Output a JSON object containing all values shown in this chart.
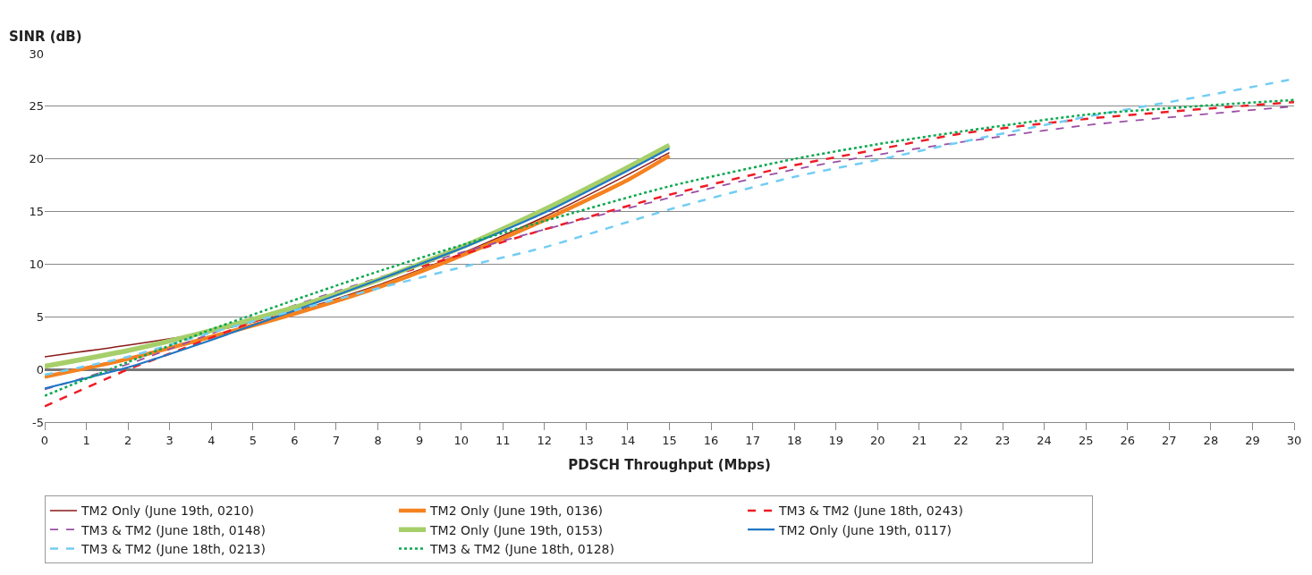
{
  "chart_data": {
    "type": "line",
    "xlabel": "PDSCH Throughput (Mbps)",
    "ylabel": "SINR (dB)",
    "xlim": [
      0,
      30
    ],
    "xticks": [
      0,
      1,
      2,
      3,
      4,
      5,
      6,
      7,
      8,
      9,
      10,
      11,
      12,
      13,
      14,
      15,
      16,
      17,
      18,
      19,
      20,
      21,
      22,
      23,
      24,
      25,
      26,
      27,
      28,
      29,
      30
    ],
    "ylim": [
      -5,
      30
    ],
    "yticks": [
      -5,
      0,
      5,
      10,
      15,
      20,
      25,
      30
    ],
    "grid": "y",
    "legend": "bottom",
    "marker": "none",
    "series": [
      {
        "name": "TM2 Only (June 19th, 0210)",
        "color": "#8b1a1a",
        "line_style": "solid",
        "x": [
          0,
          2,
          4,
          6,
          8,
          10,
          12,
          14,
          15
        ],
        "values": [
          1.2,
          2.3,
          3.6,
          5.5,
          8.0,
          11.0,
          14.5,
          18.5,
          20.6
        ]
      },
      {
        "name": "TM2 Only (June 19th, 0136)",
        "color": "#f58220",
        "line_style": "solid",
        "x": [
          0,
          2,
          4,
          6,
          8,
          10,
          12,
          14,
          15
        ],
        "values": [
          -0.7,
          1.0,
          3.1,
          5.3,
          7.8,
          10.8,
          14.2,
          18.0,
          20.3
        ]
      },
      {
        "name": "TM3 & TM2 (June 18th, 0243)",
        "color": "#ee1c25",
        "line_style": "dashed",
        "x": [
          0,
          2,
          3,
          5,
          8,
          10,
          12,
          15,
          18,
          20,
          22,
          25,
          28,
          30
        ],
        "values": [
          -3.5,
          0.0,
          1.5,
          4.5,
          8.5,
          10.9,
          13.3,
          16.6,
          19.4,
          20.9,
          22.4,
          23.8,
          24.8,
          25.4
        ]
      },
      {
        "name": "TM3 & TM2 (June 18th, 0148)",
        "color": "#9b4fa5",
        "line_style": "dashed",
        "x": [
          0,
          2,
          4,
          6,
          8,
          10,
          12,
          15,
          18,
          20,
          22,
          25,
          28,
          30
        ],
        "values": [
          -1.9,
          0.5,
          3.4,
          6.1,
          8.7,
          11.1,
          13.3,
          16.3,
          19.0,
          20.4,
          21.6,
          23.2,
          24.3,
          25.0
        ]
      },
      {
        "name": "TM2 Only (June 19th, 0153)",
        "color": "#a6cf6a",
        "line_style": "solid",
        "x": [
          0,
          2,
          4,
          6,
          8,
          10,
          12,
          14,
          15
        ],
        "values": [
          0.3,
          1.8,
          3.7,
          5.9,
          8.5,
          11.6,
          15.2,
          19.2,
          21.3
        ]
      },
      {
        "name": "TM2 Only (June 19th, 0117)",
        "color": "#1f77c4",
        "line_style": "solid",
        "x": [
          0,
          2,
          4,
          6,
          8,
          10,
          12,
          14,
          15
        ],
        "values": [
          -1.8,
          0.2,
          2.8,
          5.6,
          8.5,
          11.5,
          14.9,
          18.9,
          21.0
        ]
      },
      {
        "name": "TM3 & TM2 (June 18th, 0213)",
        "color": "#72cdf4",
        "line_style": "dashed",
        "x": [
          0,
          2,
          4,
          6,
          8,
          10,
          12,
          15,
          18,
          20,
          22,
          25,
          28,
          30
        ],
        "values": [
          -0.5,
          1.2,
          3.5,
          5.6,
          7.7,
          9.7,
          11.6,
          15.2,
          18.3,
          19.9,
          21.6,
          24.0,
          26.1,
          27.6
        ]
      },
      {
        "name": "TM3 & TM2 (June 18th, 0128)",
        "color": "#0aa84f",
        "line_style": "dotted",
        "x": [
          0,
          2,
          4,
          6,
          8,
          10,
          12,
          15,
          18,
          20,
          22,
          25,
          28,
          30
        ],
        "values": [
          -2.5,
          0.7,
          3.8,
          6.6,
          9.3,
          11.8,
          14.1,
          17.4,
          20.0,
          21.4,
          22.6,
          24.2,
          25.1,
          25.6
        ]
      }
    ]
  }
}
